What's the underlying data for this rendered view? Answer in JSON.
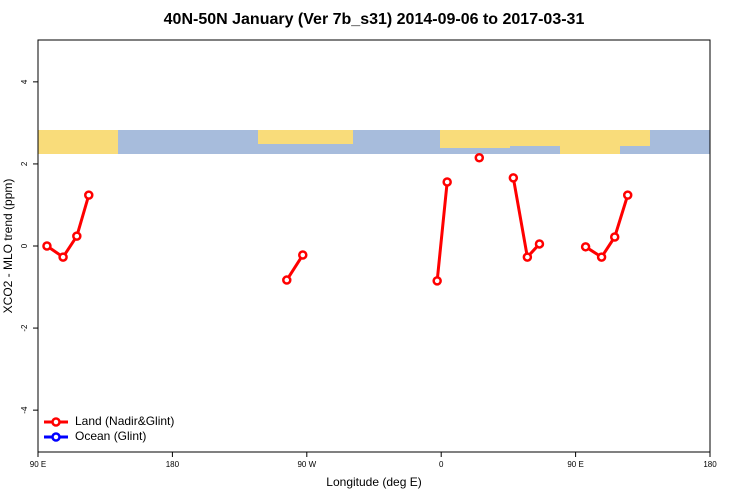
{
  "chart_data": {
    "type": "line",
    "title": "40N-50N January (Ver 7b_s31)   2014-09-06 to 2017-03-31",
    "x_label": "Longitude (deg E)",
    "y_label": "XCO2 - MLO trend (ppm)",
    "x": [
      96,
      106.8,
      116,
      124,
      null,
      256.6,
      267.3,
      null,
      357.3,
      364,
      null,
      385.5,
      null,
      408.3,
      417.7,
      425.8,
      null,
      456.7,
      467.4,
      476.2,
      484.9
    ],
    "series": [
      {
        "name": "Land (Nadir&Glint)",
        "color": "#ff0000",
        "values": [
          0,
          -0.27,
          0.24,
          1.24,
          null,
          -0.83,
          -0.22,
          null,
          -0.85,
          1.56,
          null,
          2.15,
          null,
          1.66,
          -0.27,
          0.05,
          null,
          -0.02,
          -0.27,
          0.22,
          1.24
        ]
      },
      {
        "name": "Ocean (Glint)",
        "color": "#0000ff",
        "values": [
          null,
          null,
          null,
          null,
          null,
          null,
          null,
          null,
          null,
          null,
          null,
          null,
          null,
          null,
          null,
          null,
          null,
          null,
          null,
          null,
          null
        ]
      }
    ],
    "xlim": [
      90,
      540
    ],
    "xticks": [
      {
        "value": 90,
        "label": "90 E"
      },
      180,
      {
        "value": 270,
        "label": "90 W"
      },
      {
        "value": 360,
        "label": "0"
      },
      {
        "value": 450,
        "label": "90 E"
      },
      {
        "value": 540,
        "label": "180"
      }
    ],
    "ylim": [
      -5.02,
      5.02
    ],
    "yticks": [
      -4,
      -2,
      0,
      2,
      4
    ],
    "legend": "bottom-left"
  }
}
